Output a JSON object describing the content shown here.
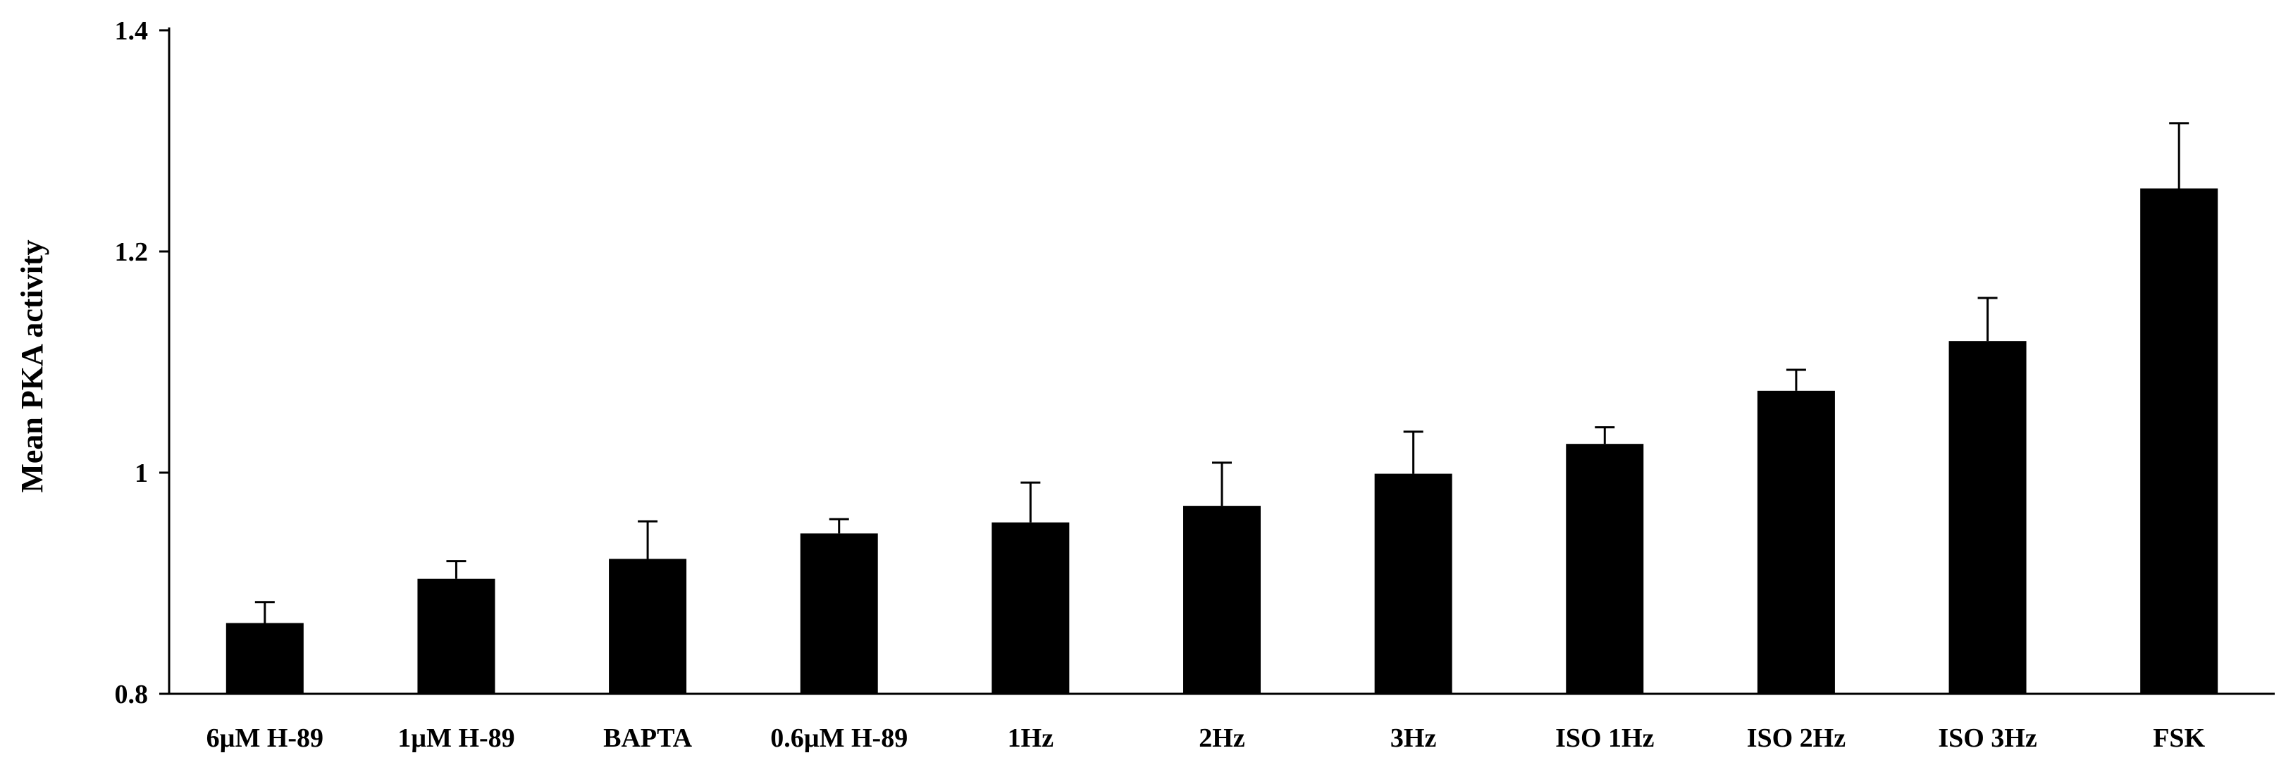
{
  "chart_data": {
    "type": "bar",
    "title": "",
    "xlabel": "",
    "ylabel": "Mean PKA activity",
    "categories": [
      "6µM H-89",
      "1µM H-89",
      "BAPTA",
      "0.6µM H-89",
      "1Hz",
      "2Hz",
      "3Hz",
      "ISO 1Hz",
      "ISO 2Hz",
      "ISO 3Hz",
      "FSK"
    ],
    "series": [
      {
        "values": [
          0.864,
          0.904,
          0.922,
          0.945,
          0.955,
          0.97,
          0.999,
          1.026,
          1.074,
          1.119,
          1.257
        ],
        "error_plus": [
          0.019,
          0.016,
          0.034,
          0.013,
          0.036,
          0.039,
          0.038,
          0.015,
          0.019,
          0.039,
          0.059
        ]
      }
    ],
    "ylim": [
      0.8,
      1.4
    ],
    "yticks": [
      {
        "value": 0.8,
        "label": "0.8"
      },
      {
        "value": 1.0,
        "label": "1"
      },
      {
        "value": 1.2,
        "label": "1.2"
      },
      {
        "value": 1.4,
        "label": "1.4"
      }
    ],
    "grid": false,
    "legend": "none",
    "colors": {
      "bar": "#000000",
      "axis": "#000000",
      "background": "#ffffff"
    }
  }
}
